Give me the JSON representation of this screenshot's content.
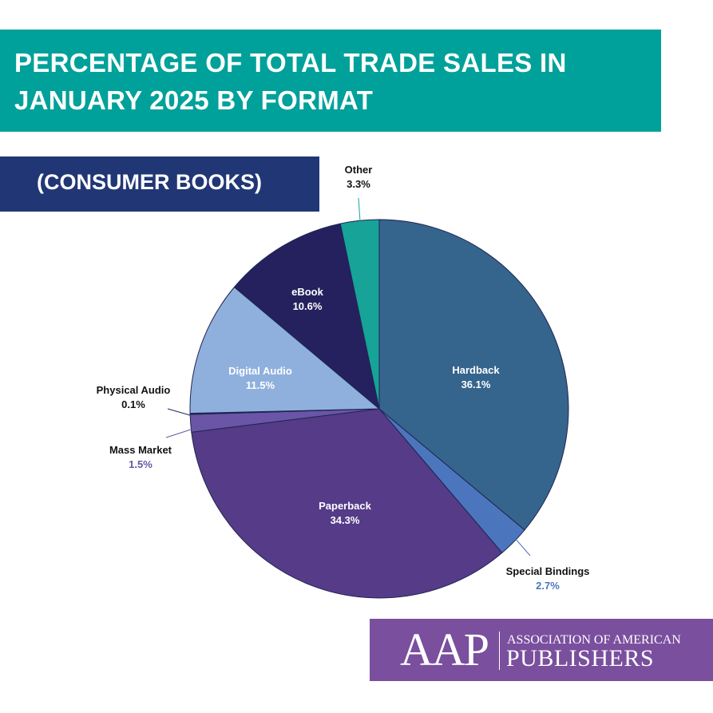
{
  "header": {
    "title_line1": "PERCENTAGE OF TOTAL TRADE SALES IN",
    "title_line2": "JANUARY 2025 BY FORMAT",
    "subtitle": "(CONSUMER BOOKS)",
    "title_bg": "#00a19a",
    "subtitle_bg": "#213775"
  },
  "chart_data": {
    "type": "pie",
    "title": "PERCENTAGE OF TOTAL TRADE SALES IN JANUARY 2025 BY FORMAT",
    "subtitle": "(CONSUMER BOOKS)",
    "start": "12 o'clock, clockwise",
    "slices": [
      {
        "label": "Hardback",
        "value": 36.1,
        "display": "36.1%",
        "color": "#35648d",
        "label_style": "inside"
      },
      {
        "label": "Special Bindings",
        "value": 2.7,
        "display": "2.7%",
        "color": "#4b76bd",
        "label_style": "outside"
      },
      {
        "label": "Paperback",
        "value": 34.3,
        "display": "34.3%",
        "color": "#553b88",
        "label_style": "inside"
      },
      {
        "label": "Mass Market",
        "value": 1.5,
        "display": "1.5%",
        "color": "#6a55a6",
        "label_style": "outside"
      },
      {
        "label": "Physical Audio",
        "value": 0.1,
        "display": "0.1%",
        "color": "#1c2e5e",
        "label_style": "outside"
      },
      {
        "label": "Digital Audio",
        "value": 11.5,
        "display": "11.5%",
        "color": "#8fb0dd",
        "label_style": "inside"
      },
      {
        "label": "eBook",
        "value": 10.6,
        "display": "10.6%",
        "color": "#25215f",
        "label_style": "inside"
      },
      {
        "label": "Other",
        "value": 3.3,
        "display": "3.3%",
        "color": "#17a398",
        "label_style": "outside"
      }
    ]
  },
  "logo": {
    "mark": "AAP",
    "line1": "ASSOCIATION OF AMERICAN",
    "line2": "PUBLISHERS",
    "bg": "#7a4f9e"
  }
}
